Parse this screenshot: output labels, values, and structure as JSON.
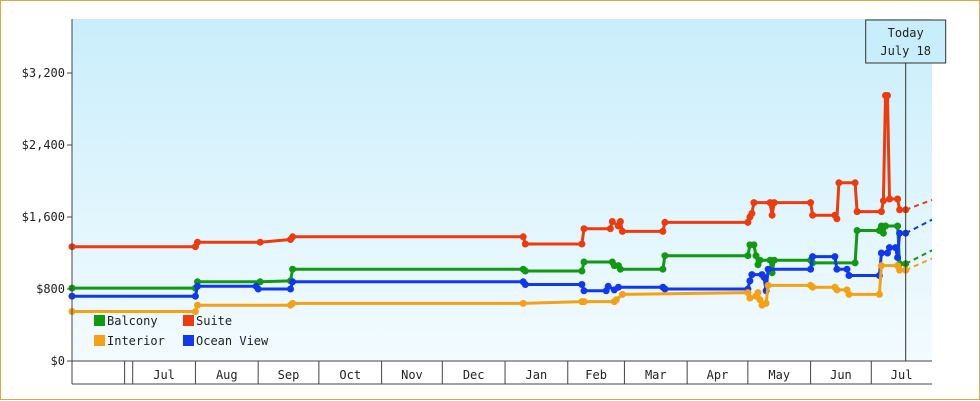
{
  "chart_data": {
    "type": "line",
    "title": "",
    "xlabel": "",
    "ylabel": "",
    "ylim": [
      0,
      3800
    ],
    "y_ticks": [
      0,
      800,
      1600,
      2400,
      3200
    ],
    "y_tick_labels": [
      "$0",
      "$800",
      "$1,600",
      "$2,400",
      "$3,200"
    ],
    "x_range": [
      "2014-06-01",
      "2015-07-31"
    ],
    "x_tick_labels": [
      {
        "date": "2014-07-01",
        "label": "Jul"
      },
      {
        "date": "2014-08-01",
        "label": "Aug"
      },
      {
        "date": "2014-09-01",
        "label": "Sep"
      },
      {
        "date": "2014-10-01",
        "label": "Oct"
      },
      {
        "date": "2014-11-01",
        "label": "Nov"
      },
      {
        "date": "2014-12-01",
        "label": "Dec"
      },
      {
        "date": "2015-01-01",
        "label": "Jan"
      },
      {
        "date": "2015-02-01",
        "label": "Feb"
      },
      {
        "date": "2015-03-01",
        "label": "Mar"
      },
      {
        "date": "2015-04-01",
        "label": "Apr"
      },
      {
        "date": "2015-05-01",
        "label": "May"
      },
      {
        "date": "2015-06-01",
        "label": "Jun"
      },
      {
        "date": "2015-07-01",
        "label": "Jul"
      }
    ],
    "grid": false,
    "legend_position": "bottom-left",
    "today": {
      "line1": "Today",
      "line2": "July 18",
      "date": "2015-07-18"
    },
    "forecast_end": "2015-07-31",
    "series": [
      {
        "name": "Suite",
        "color": "#ee3a0d",
        "points": [
          [
            "2014-06-01",
            1270
          ],
          [
            "2014-08-01",
            1270
          ],
          [
            "2014-08-02",
            1320
          ],
          [
            "2014-09-02",
            1320
          ],
          [
            "2014-09-17",
            1350
          ],
          [
            "2014-09-18",
            1380
          ],
          [
            "2015-01-10",
            1380
          ],
          [
            "2015-01-11",
            1300
          ],
          [
            "2015-02-08",
            1300
          ],
          [
            "2015-02-09",
            1470
          ],
          [
            "2015-02-22",
            1470
          ],
          [
            "2015-02-23",
            1550
          ],
          [
            "2015-02-26",
            1500
          ],
          [
            "2015-02-27",
            1550
          ],
          [
            "2015-02-28",
            1440
          ],
          [
            "2015-03-20",
            1440
          ],
          [
            "2015-03-21",
            1540
          ],
          [
            "2015-05-01",
            1540
          ],
          [
            "2015-05-02",
            1600
          ],
          [
            "2015-05-03",
            1640
          ],
          [
            "2015-05-04",
            1760
          ],
          [
            "2015-05-12",
            1760
          ],
          [
            "2015-05-13",
            1620
          ],
          [
            "2015-05-14",
            1760
          ],
          [
            "2015-06-01",
            1760
          ],
          [
            "2015-06-02",
            1620
          ],
          [
            "2015-06-13",
            1620
          ],
          [
            "2015-06-14",
            1580
          ],
          [
            "2015-06-15",
            1980
          ],
          [
            "2015-06-23",
            1980
          ],
          [
            "2015-06-24",
            1660
          ],
          [
            "2015-07-06",
            1660
          ],
          [
            "2015-07-07",
            1780
          ],
          [
            "2015-07-08",
            2950
          ],
          [
            "2015-07-09",
            2950
          ],
          [
            "2015-07-10",
            1800
          ],
          [
            "2015-07-14",
            1800
          ],
          [
            "2015-07-15",
            1680
          ],
          [
            "2015-07-18",
            1680
          ]
        ],
        "forecast": [
          [
            "2015-07-18",
            1680
          ],
          [
            "2015-07-31",
            1790
          ]
        ]
      },
      {
        "name": "Balcony",
        "color": "#119911",
        "points": [
          [
            "2014-06-01",
            810
          ],
          [
            "2014-08-01",
            810
          ],
          [
            "2014-08-02",
            880
          ],
          [
            "2014-09-02",
            880
          ],
          [
            "2014-09-17",
            890
          ],
          [
            "2014-09-18",
            1020
          ],
          [
            "2015-01-10",
            1020
          ],
          [
            "2015-01-11",
            1000
          ],
          [
            "2015-02-08",
            1000
          ],
          [
            "2015-02-09",
            1100
          ],
          [
            "2015-02-23",
            1100
          ],
          [
            "2015-02-24",
            1060
          ],
          [
            "2015-02-26",
            1060
          ],
          [
            "2015-02-27",
            1020
          ],
          [
            "2015-03-20",
            1020
          ],
          [
            "2015-03-21",
            1170
          ],
          [
            "2015-05-01",
            1170
          ],
          [
            "2015-05-02",
            1290
          ],
          [
            "2015-05-04",
            1290
          ],
          [
            "2015-05-05",
            1170
          ],
          [
            "2015-05-06",
            1070
          ],
          [
            "2015-05-07",
            1120
          ],
          [
            "2015-05-12",
            1120
          ],
          [
            "2015-05-13",
            980
          ],
          [
            "2015-05-14",
            1120
          ],
          [
            "2015-06-01",
            1120
          ],
          [
            "2015-06-02",
            1090
          ],
          [
            "2015-06-23",
            1090
          ],
          [
            "2015-06-24",
            1450
          ],
          [
            "2015-07-05",
            1450
          ],
          [
            "2015-07-06",
            1500
          ],
          [
            "2015-07-07",
            1420
          ],
          [
            "2015-07-08",
            1500
          ],
          [
            "2015-07-14",
            1500
          ],
          [
            "2015-07-15",
            1080
          ],
          [
            "2015-07-18",
            1080
          ]
        ],
        "forecast": [
          [
            "2015-07-18",
            1080
          ],
          [
            "2015-07-31",
            1230
          ]
        ]
      },
      {
        "name": "Ocean View",
        "color": "#1038ee",
        "points": [
          [
            "2014-06-01",
            720
          ],
          [
            "2014-08-01",
            720
          ],
          [
            "2014-08-02",
            830
          ],
          [
            "2014-08-31",
            830
          ],
          [
            "2014-09-01",
            800
          ],
          [
            "2014-09-17",
            800
          ],
          [
            "2014-09-18",
            880
          ],
          [
            "2015-01-10",
            880
          ],
          [
            "2015-01-11",
            850
          ],
          [
            "2015-02-08",
            850
          ],
          [
            "2015-02-09",
            780
          ],
          [
            "2015-02-20",
            780
          ],
          [
            "2015-02-21",
            830
          ],
          [
            "2015-02-24",
            790
          ],
          [
            "2015-02-26",
            820
          ],
          [
            "2015-03-20",
            820
          ],
          [
            "2015-03-21",
            800
          ],
          [
            "2015-05-01",
            800
          ],
          [
            "2015-05-02",
            890
          ],
          [
            "2015-05-03",
            960
          ],
          [
            "2015-05-08",
            960
          ],
          [
            "2015-05-09",
            930
          ],
          [
            "2015-05-10",
            780
          ],
          [
            "2015-05-11",
            1020
          ],
          [
            "2015-06-01",
            1020
          ],
          [
            "2015-06-02",
            1160
          ],
          [
            "2015-06-13",
            1160
          ],
          [
            "2015-06-14",
            1020
          ],
          [
            "2015-06-19",
            1020
          ],
          [
            "2015-06-20",
            950
          ],
          [
            "2015-07-05",
            950
          ],
          [
            "2015-07-06",
            1200
          ],
          [
            "2015-07-09",
            1200
          ],
          [
            "2015-07-10",
            1260
          ],
          [
            "2015-07-13",
            1260
          ],
          [
            "2015-07-14",
            1150
          ],
          [
            "2015-07-15",
            1420
          ],
          [
            "2015-07-18",
            1420
          ]
        ],
        "forecast": [
          [
            "2015-07-18",
            1420
          ],
          [
            "2015-07-31",
            1570
          ]
        ]
      },
      {
        "name": "Interior",
        "color": "#f4a116",
        "points": [
          [
            "2014-06-01",
            550
          ],
          [
            "2014-08-01",
            550
          ],
          [
            "2014-08-02",
            620
          ],
          [
            "2014-09-17",
            620
          ],
          [
            "2014-09-18",
            640
          ],
          [
            "2015-01-10",
            640
          ],
          [
            "2015-02-08",
            660
          ],
          [
            "2015-02-09",
            660
          ],
          [
            "2015-02-24",
            660
          ],
          [
            "2015-02-25",
            680
          ],
          [
            "2015-02-28",
            740
          ],
          [
            "2015-05-01",
            760
          ],
          [
            "2015-05-02",
            700
          ],
          [
            "2015-05-05",
            720
          ],
          [
            "2015-05-06",
            760
          ],
          [
            "2015-05-07",
            680
          ],
          [
            "2015-05-08",
            620
          ],
          [
            "2015-05-10",
            640
          ],
          [
            "2015-05-11",
            840
          ],
          [
            "2015-06-01",
            840
          ],
          [
            "2015-06-02",
            820
          ],
          [
            "2015-06-13",
            820
          ],
          [
            "2015-06-14",
            790
          ],
          [
            "2015-06-19",
            790
          ],
          [
            "2015-06-20",
            740
          ],
          [
            "2015-07-05",
            740
          ],
          [
            "2015-07-06",
            1060
          ],
          [
            "2015-07-14",
            1060
          ],
          [
            "2015-07-15",
            1010
          ],
          [
            "2015-07-18",
            1010
          ]
        ],
        "forecast": [
          [
            "2015-07-18",
            1010
          ],
          [
            "2015-07-31",
            1140
          ]
        ]
      }
    ],
    "legend": [
      {
        "name": "Balcony",
        "color": "#119911"
      },
      {
        "name": "Suite",
        "color": "#ee3a0d"
      },
      {
        "name": "Interior",
        "color": "#f4a116"
      },
      {
        "name": "Ocean View",
        "color": "#1038ee"
      }
    ]
  }
}
